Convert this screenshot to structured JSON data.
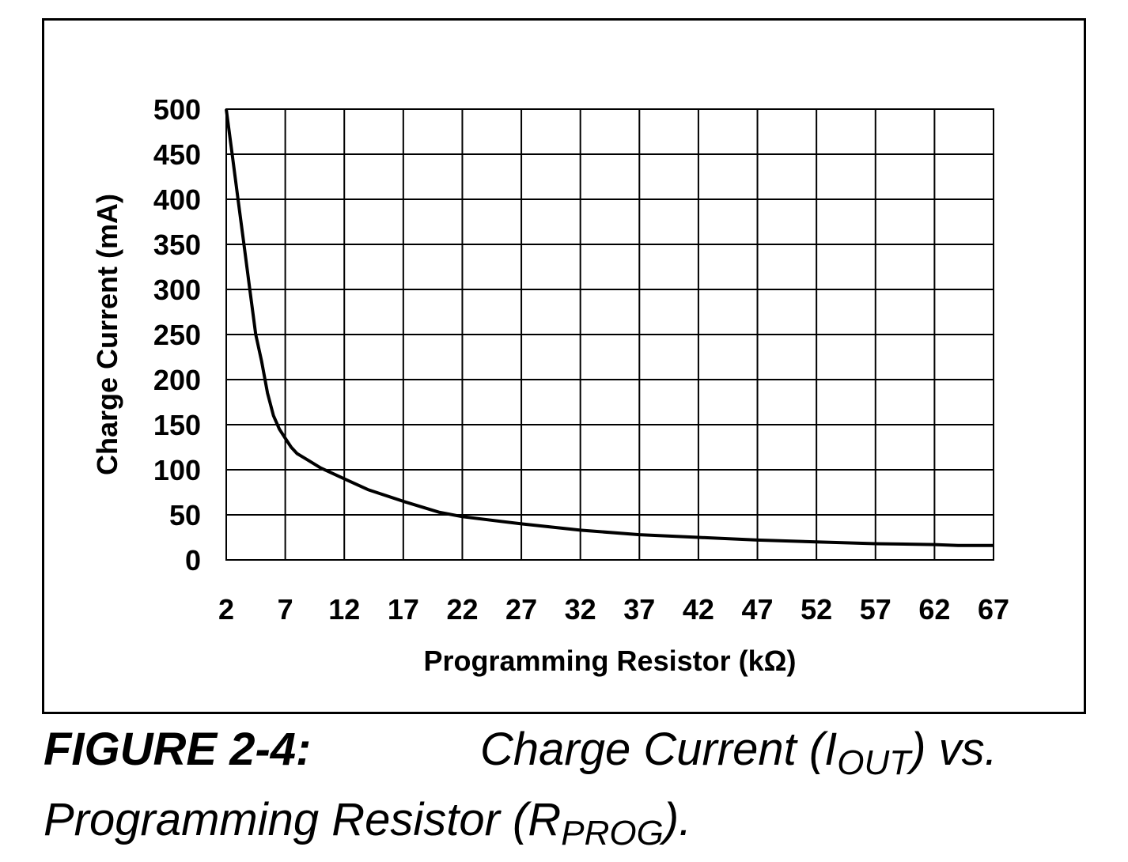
{
  "chart_data": {
    "type": "line",
    "xlabel": "Programming Resistor (kΩ)",
    "ylabel": "Charge Current (mA)",
    "xlim": [
      2,
      67
    ],
    "ylim": [
      0,
      500
    ],
    "x_ticks": [
      "2",
      "7",
      "12",
      "17",
      "22",
      "27",
      "32",
      "37",
      "42",
      "47",
      "52",
      "57",
      "62",
      "67"
    ],
    "y_ticks": [
      "500",
      "450",
      "400",
      "350",
      "300",
      "250",
      "200",
      "150",
      "100",
      "50",
      "0"
    ],
    "grid": true,
    "series": [
      {
        "color": "#000000",
        "points": [
          [
            2,
            500
          ],
          [
            2.5,
            450
          ],
          [
            3,
            400
          ],
          [
            3.5,
            350
          ],
          [
            4,
            300
          ],
          [
            4.5,
            250
          ],
          [
            5,
            220
          ],
          [
            5.5,
            185
          ],
          [
            6,
            160
          ],
          [
            6.5,
            145
          ],
          [
            7,
            135
          ],
          [
            7.5,
            125
          ],
          [
            8,
            118
          ],
          [
            9,
            110
          ],
          [
            10,
            102
          ],
          [
            12,
            90
          ],
          [
            14,
            78
          ],
          [
            17,
            65
          ],
          [
            20,
            53
          ],
          [
            22,
            48
          ],
          [
            27,
            40
          ],
          [
            32,
            33
          ],
          [
            37,
            28
          ],
          [
            42,
            25
          ],
          [
            47,
            22
          ],
          [
            52,
            20
          ],
          [
            57,
            18
          ],
          [
            62,
            17
          ],
          [
            64,
            16
          ],
          [
            67,
            16
          ]
        ]
      }
    ]
  },
  "caption": {
    "label": "FIGURE 2-4:",
    "line1_pre": "Charge Current (I",
    "line1_sub": "OUT",
    "line1_post": ") vs.",
    "line2_pre": "Programming Resistor (R",
    "line2_sub": "PROG",
    "line2_post": ")."
  }
}
